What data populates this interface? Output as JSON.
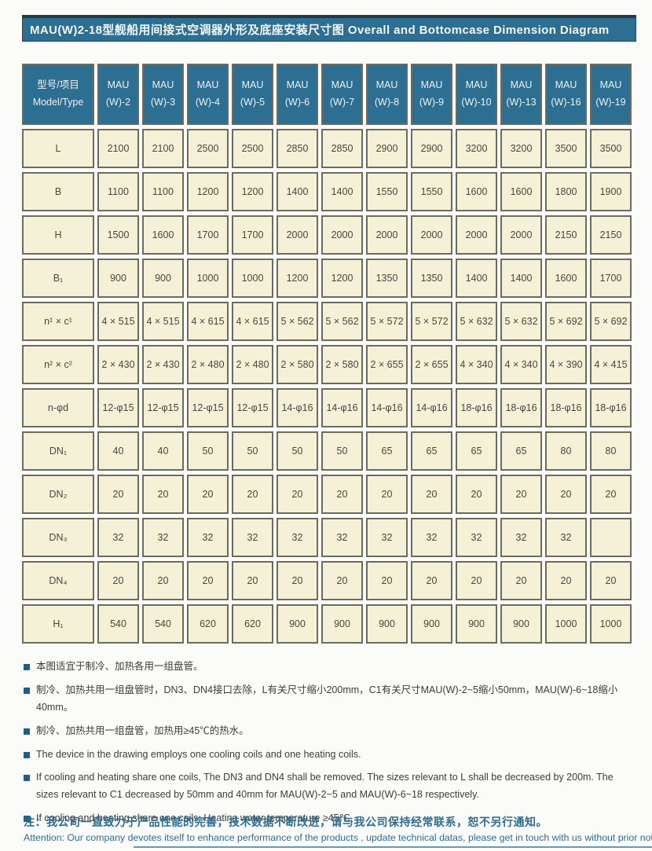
{
  "title": "MAU(W)2-18型舰船用间接式空调器外形及底座安装尺寸图 Overall and Bottomcase Dimension Diagram",
  "table": {
    "header": {
      "col1_line1": "型号/项目",
      "col1_line2": "Model/Type",
      "model_prefix": "MAU",
      "model_suffixes": [
        "(W)-2",
        "(W)-3",
        "(W)-4",
        "(W)-5",
        "(W)-6",
        "(W)-7",
        "(W)-8",
        "(W)-9",
        "(W)-10",
        "(W)-13",
        "(W)-16",
        "(W)-19"
      ]
    },
    "rows": [
      {
        "label": "L",
        "values": [
          "2100",
          "2100",
          "2500",
          "2500",
          "2850",
          "2850",
          "2900",
          "2900",
          "3200",
          "3200",
          "3500",
          "3500"
        ]
      },
      {
        "label": "B",
        "values": [
          "1100",
          "1100",
          "1200",
          "1200",
          "1400",
          "1400",
          "1550",
          "1550",
          "1600",
          "1600",
          "1800",
          "1900"
        ]
      },
      {
        "label": "H",
        "values": [
          "1500",
          "1600",
          "1700",
          "1700",
          "2000",
          "2000",
          "2000",
          "2000",
          "2000",
          "2000",
          "2150",
          "2150"
        ]
      },
      {
        "label": "B₁",
        "values": [
          "900",
          "900",
          "1000",
          "1000",
          "1200",
          "1200",
          "1350",
          "1350",
          "1400",
          "1400",
          "1600",
          "1700"
        ]
      },
      {
        "label": "n¹ × c¹",
        "values": [
          "4 × 515",
          "4 × 515",
          "4 × 615",
          "4 × 615",
          "5 × 562",
          "5 × 562",
          "5 × 572",
          "5 × 572",
          "5 × 632",
          "5 × 632",
          "5 × 692",
          "5 × 692"
        ]
      },
      {
        "label": "n² × c²",
        "values": [
          "2 × 430",
          "2 × 430",
          "2 × 480",
          "2 × 480",
          "2 × 580",
          "2 × 580",
          "2 × 655",
          "2 × 655",
          "4 × 340",
          "4 × 340",
          "4 × 390",
          "4 × 415"
        ]
      },
      {
        "label": "n-φd",
        "values": [
          "12-φ15",
          "12-φ15",
          "12-φ15",
          "12-φ15",
          "14-φ16",
          "14-φ16",
          "14-φ16",
          "14-φ16",
          "18-φ16",
          "18-φ16",
          "18-φ16",
          "18-φ16"
        ]
      },
      {
        "label": "DN₁",
        "values": [
          "40",
          "40",
          "50",
          "50",
          "50",
          "50",
          "65",
          "65",
          "65",
          "65",
          "80",
          "80"
        ]
      },
      {
        "label": "DN₂",
        "values": [
          "20",
          "20",
          "20",
          "20",
          "20",
          "20",
          "20",
          "20",
          "20",
          "20",
          "20",
          "20"
        ]
      },
      {
        "label": "DN₃",
        "values": [
          "32",
          "32",
          "32",
          "32",
          "32",
          "32",
          "32",
          "32",
          "32",
          "32",
          "32",
          ""
        ]
      },
      {
        "label": "DN₄",
        "values": [
          "20",
          "20",
          "20",
          "20",
          "20",
          "20",
          "20",
          "20",
          "20",
          "20",
          "20",
          "20"
        ]
      },
      {
        "label": "H₁",
        "values": [
          "540",
          "540",
          "620",
          "620",
          "900",
          "900",
          "900",
          "900",
          "900",
          "900",
          "1000",
          "1000"
        ]
      }
    ]
  },
  "notes": [
    {
      "text": "本图适宜于制冷、加热各用一组盘管。"
    },
    {
      "text": "制冷、加热共用一组盘管时，DN3、DN4接口去除，L有关尺寸缩小200mm，C1有关尺寸MAU(W)-2~5缩小50mm，MAU(W)-6~18缩小40mm。"
    },
    {
      "text": "制冷、加热共用一组盘管，加热用≥45℃的热水。"
    },
    {
      "text": "The device in the drawing employs one cooling coils and one heating coils."
    },
    {
      "text": "If cooling and heating share one coils, The DN3 and DN4 shall be removed. The sizes relevant to L shall be decreased by 200m. The sizes relevant to C1 decreased by 50mm and 40mm for MAU(W)-2~5 and MAU(W)-6~18 respectively."
    },
    {
      "text": "If cooling and heating share one coils, Heating water temperature ≥45℃."
    }
  ],
  "attention": {
    "zh": "注：我公司一直致力于产品性能的完善，技术数据不断改进，请与我公司保持经常联系，恕不另行通知。",
    "en": "Attention: Our company devotes itself to enhance performance of the products , update technical datas, please get in touch with us without prior notice."
  }
}
